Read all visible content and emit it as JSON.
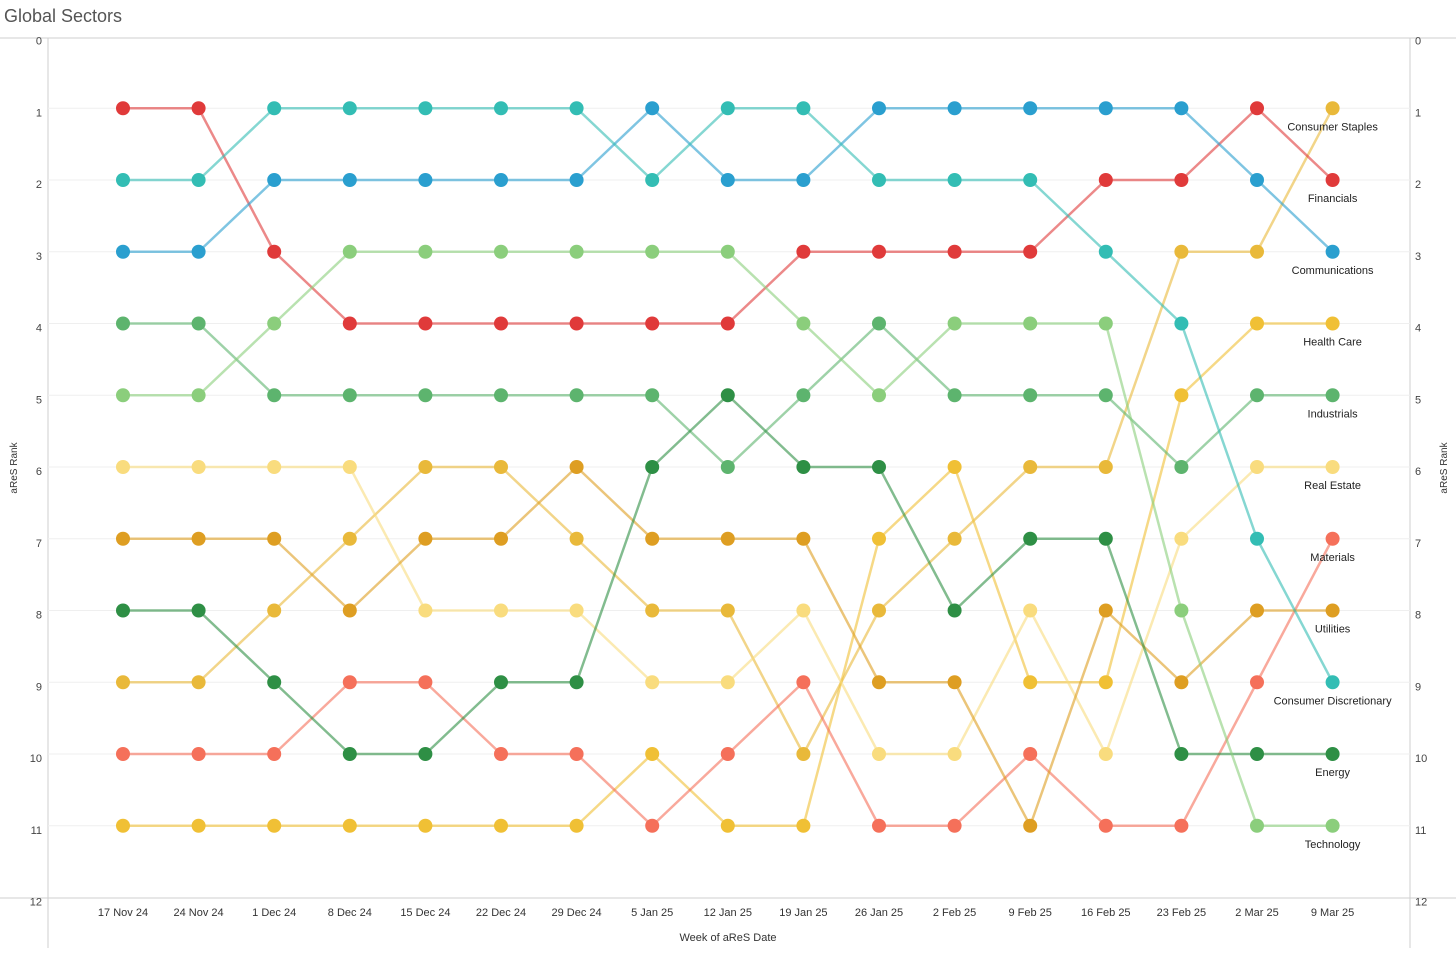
{
  "page": {
    "title": "Global Sectors"
  },
  "chart_data": {
    "type": "line",
    "title": "Global Sectors",
    "xlabel": "Week of aReS Date",
    "ylabel": "aReS Rank",
    "ylabel_right": "aReS Rank",
    "ylim": [
      0,
      12
    ],
    "y_reversed": true,
    "y_ticks": [
      "0",
      "1",
      "2",
      "3",
      "4",
      "5",
      "6",
      "7",
      "8",
      "9",
      "10",
      "11",
      "12"
    ],
    "categories": [
      "17 Nov 24",
      "24 Nov 24",
      "1 Dec 24",
      "8 Dec 24",
      "15 Dec 24",
      "22 Dec 24",
      "29 Dec 24",
      "5 Jan 25",
      "12 Jan 25",
      "19 Jan 25",
      "26 Jan 25",
      "2 Feb 25",
      "9 Feb 25",
      "16 Feb 25",
      "23 Feb 25",
      "2 Mar 25",
      "9 Mar 25"
    ],
    "grid": true,
    "legend": "labels at right end of lines",
    "series": [
      {
        "name": "Consumer Staples",
        "color": "#E9B93A",
        "values": [
          9,
          9,
          8,
          7,
          6,
          6,
          7,
          8,
          8,
          10,
          8,
          7,
          6,
          6,
          3,
          3,
          1
        ]
      },
      {
        "name": "Financials",
        "color": "#E03A3A",
        "values": [
          1,
          1,
          3,
          4,
          4,
          4,
          4,
          4,
          4,
          3,
          3,
          3,
          3,
          2,
          2,
          1,
          2
        ]
      },
      {
        "name": "Communications",
        "color": "#2A9FCF",
        "values": [
          3,
          3,
          2,
          2,
          2,
          2,
          2,
          1,
          2,
          2,
          1,
          1,
          1,
          1,
          1,
          2,
          3
        ]
      },
      {
        "name": "Health Care",
        "color": "#F0C035",
        "values": [
          11,
          11,
          11,
          11,
          11,
          11,
          11,
          10,
          11,
          11,
          7,
          6,
          9,
          9,
          5,
          4,
          4
        ]
      },
      {
        "name": "Industrials",
        "color": "#5DB46E",
        "values": [
          4,
          4,
          5,
          5,
          5,
          5,
          5,
          5,
          6,
          5,
          4,
          5,
          5,
          5,
          6,
          5,
          5
        ]
      },
      {
        "name": "Real Estate",
        "color": "#F9DC7E",
        "values": [
          6,
          6,
          6,
          6,
          8,
          8,
          8,
          9,
          9,
          8,
          10,
          10,
          8,
          10,
          7,
          6,
          6
        ]
      },
      {
        "name": "Materials",
        "color": "#F5705A",
        "values": [
          10,
          10,
          10,
          9,
          9,
          10,
          10,
          11,
          10,
          9,
          11,
          11,
          10,
          11,
          11,
          9,
          7
        ]
      },
      {
        "name": "Utilities",
        "color": "#DE9E22",
        "values": [
          7,
          7,
          7,
          8,
          7,
          7,
          6,
          7,
          7,
          7,
          9,
          9,
          11,
          8,
          9,
          8,
          8
        ]
      },
      {
        "name": "Consumer Discretionary",
        "color": "#33BDB4",
        "values": [
          2,
          2,
          1,
          1,
          1,
          1,
          1,
          2,
          1,
          1,
          2,
          2,
          2,
          3,
          4,
          7,
          9
        ]
      },
      {
        "name": "Energy",
        "color": "#2E8F45",
        "values": [
          8,
          8,
          9,
          10,
          10,
          9,
          9,
          6,
          5,
          6,
          6,
          8,
          7,
          7,
          10,
          10,
          10
        ]
      },
      {
        "name": "Technology",
        "color": "#8BCE7C",
        "values": [
          5,
          5,
          4,
          3,
          3,
          3,
          3,
          3,
          3,
          4,
          5,
          4,
          4,
          4,
          8,
          11,
          11
        ]
      }
    ]
  }
}
